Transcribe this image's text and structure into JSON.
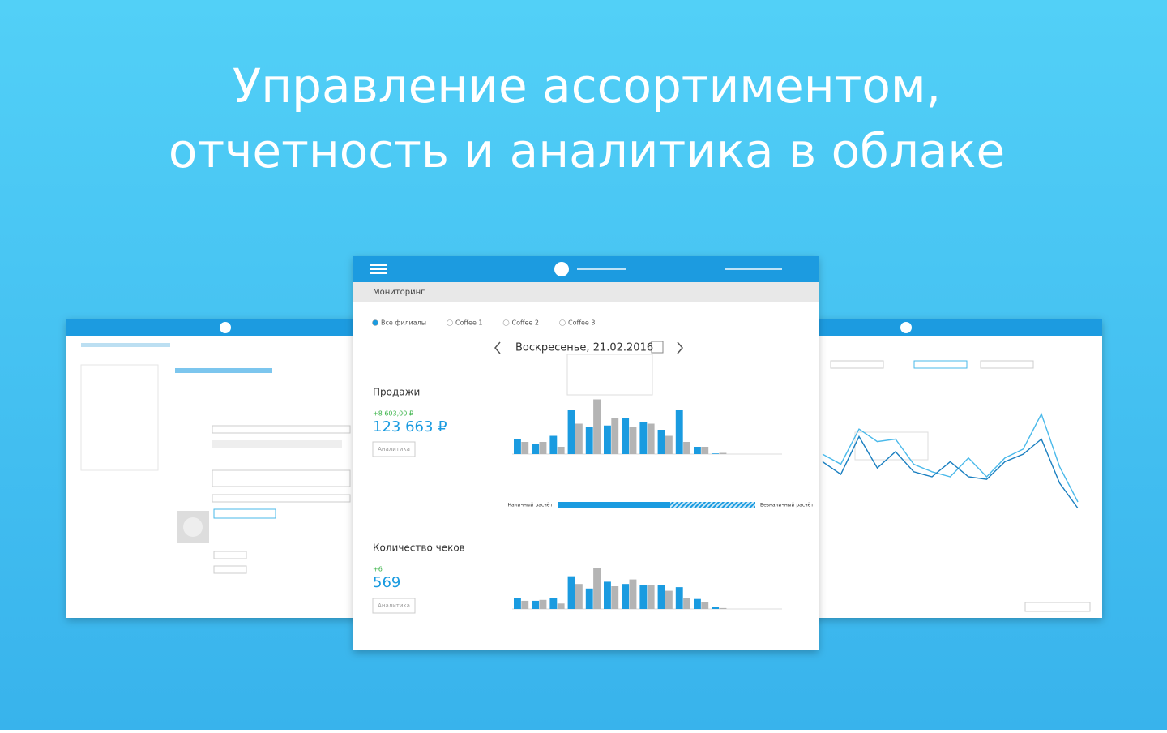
{
  "headline": [
    "Управление ассортиментом,",
    "отчетность и аналитика в облаке"
  ],
  "ui": {
    "section": "Мониторинг",
    "branches": [
      "Все филиалы",
      "Coffee 1",
      "Coffee 2",
      "Coffee 3"
    ],
    "date": "Воскресенье, 21.02.2016",
    "sales": {
      "title": "Продажи",
      "delta": "+8 603,00 ₽",
      "total": "123 663 ₽",
      "button": "Аналитика"
    },
    "checks": {
      "title": "Количество чеков",
      "delta": "+6",
      "total": "569",
      "button": "Аналитика"
    }
  },
  "chart_data": [
    {
      "type": "bar",
      "ylim": [
        0,
        100
      ],
      "series": [
        {
          "color": "#1a9be0",
          "values": [
            24,
            16,
            30,
            72,
            45,
            47,
            60,
            52,
            40,
            72,
            12,
            1,
            0,
            0,
            0
          ]
        },
        {
          "color": "#b4b4b4",
          "values": [
            20,
            20,
            12,
            50,
            90,
            60,
            45,
            50,
            30,
            20,
            12,
            2,
            0,
            0,
            0
          ]
        }
      ]
    },
    {
      "type": "bar",
      "ylim": [
        0,
        100
      ],
      "series": [
        {
          "color": "#1a9be0",
          "values": [
            25,
            18,
            25,
            72,
            45,
            60,
            55,
            52,
            52,
            48,
            22,
            4,
            0,
            0,
            0
          ]
        },
        {
          "color": "#b4b4b4",
          "values": [
            18,
            20,
            12,
            55,
            90,
            50,
            65,
            52,
            40,
            25,
            15,
            2,
            0,
            0,
            0
          ]
        }
      ]
    },
    {
      "type": "line",
      "ylim": [
        0,
        100
      ],
      "series": [
        {
          "color": "#4ab9ea",
          "values": [
            58,
            50,
            78,
            68,
            70,
            50,
            44,
            40,
            55,
            40,
            55,
            62,
            90,
            48,
            20
          ]
        },
        {
          "color": "#1a7fc0",
          "values": [
            52,
            42,
            72,
            47,
            60,
            44,
            40,
            52,
            40,
            38,
            52,
            58,
            70,
            35,
            15
          ]
        }
      ]
    },
    {
      "type": "stacked-bar",
      "categories": [
        "Наличный расчёт",
        "Безналичный расчёт"
      ],
      "values": [
        57,
        43
      ]
    }
  ]
}
